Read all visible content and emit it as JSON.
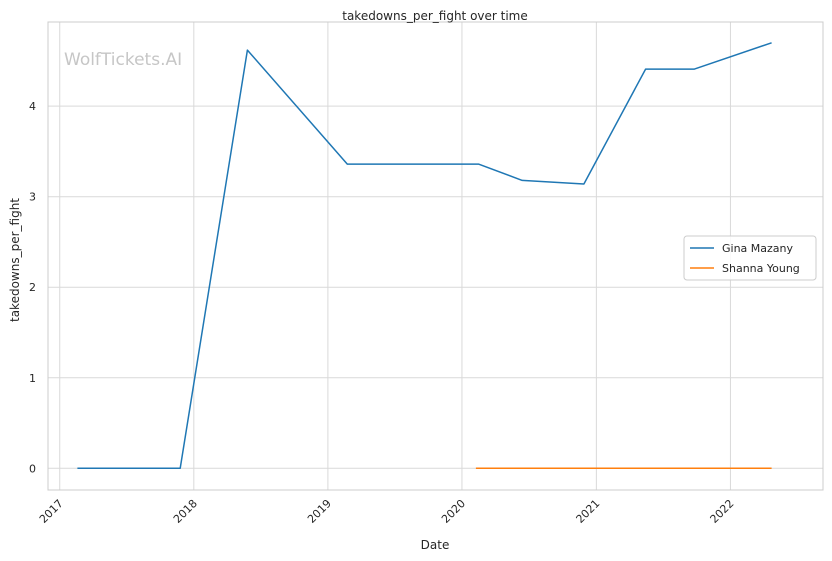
{
  "chart_data": {
    "type": "line",
    "title": "takedowns_per_fight over time",
    "xlabel": "Date",
    "ylabel": "takedowns_per_fight",
    "watermark": "WolfTickets.AI",
    "xlim": [
      "2016-11-30",
      "2022-09-10"
    ],
    "ylim": [
      -0.24,
      4.93
    ],
    "x_ticks": [
      "2017-01-01",
      "2018-01-01",
      "2019-01-01",
      "2020-01-01",
      "2021-01-01",
      "2022-01-01"
    ],
    "x_tick_labels": [
      "2017",
      "2018",
      "2019",
      "2020",
      "2021",
      "2022"
    ],
    "y_ticks": [
      0,
      1,
      2,
      3,
      4
    ],
    "grid": true,
    "legend_position": "center-right",
    "series": [
      {
        "name": "Gina Mazany",
        "color": "#1f77b4",
        "points": [
          {
            "x": "2017-02-18",
            "y": 0
          },
          {
            "x": "2017-11-25",
            "y": 0
          },
          {
            "x": "2018-05-27",
            "y": 4.62
          },
          {
            "x": "2019-02-23",
            "y": 3.36
          },
          {
            "x": "2020-02-15",
            "y": 3.36
          },
          {
            "x": "2020-06-13",
            "y": 3.18
          },
          {
            "x": "2020-11-28",
            "y": 3.14
          },
          {
            "x": "2021-05-15",
            "y": 4.41
          },
          {
            "x": "2021-09-25",
            "y": 4.41
          },
          {
            "x": "2022-04-23",
            "y": 4.7
          }
        ]
      },
      {
        "name": "Shanna Young",
        "color": "#ff7f0e",
        "points": [
          {
            "x": "2020-02-08",
            "y": 0
          },
          {
            "x": "2022-04-23",
            "y": 0
          }
        ]
      }
    ]
  }
}
